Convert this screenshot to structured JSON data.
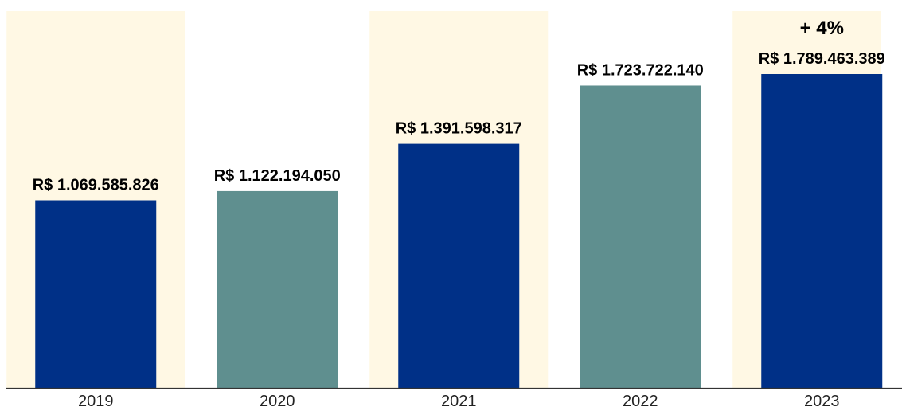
{
  "chart_data": {
    "type": "bar",
    "categories": [
      "2019",
      "2020",
      "2021",
      "2022",
      "2023"
    ],
    "values": [
      1069585826,
      1122194050,
      1391598317,
      1723722140,
      1789463389
    ],
    "value_labels": [
      "R$ 1.069.585.826",
      "R$ 1.122.194.050",
      "R$ 1.391.598.317",
      "R$ 1.723.722.140",
      "R$ 1.789.463.389"
    ],
    "colors": [
      "#003087",
      "#5f8f8f",
      "#003087",
      "#5f8f8f",
      "#003087"
    ],
    "highlighted": [
      true,
      false,
      true,
      false,
      true
    ],
    "band_color": "#fff8e4",
    "annotation": {
      "text": "+ 4%",
      "category": 4
    }
  }
}
